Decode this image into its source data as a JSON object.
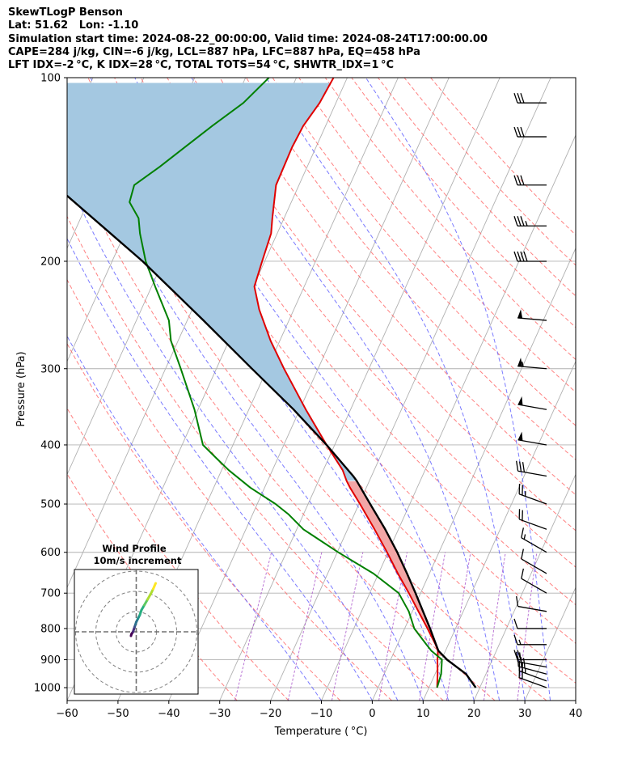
{
  "header": {
    "line1": "SkewTLogP Benson",
    "line2": "Lat: 51.62   Lon: -1.10",
    "line3": "Simulation start time: 2024-08-22_00:00:00, Valid time: 2024-08-24T17:00:00.00",
    "line4": "CAPE=284 j/kg, CIN=-6 j/kg, LCL=887 hPa, LFC=887 hPa, EQ=458 hPa",
    "line5": "LFT IDX=-2 °C, K IDX=28 °C, TOTAL TOTS=54 °C, SHWTR_IDX=1 °C"
  },
  "chart_data": {
    "type": "line",
    "xlabel": "Temperature ( °C)",
    "ylabel": "Pressure (hPa)",
    "xlim": [
      -60,
      40
    ],
    "ylim": [
      1050,
      100
    ],
    "y_scale": "log",
    "x_ticks": [
      "−60",
      "−50",
      "−40",
      "−30",
      "−20",
      "−10",
      "0",
      "10",
      "20",
      "30",
      "40"
    ],
    "y_ticks": [
      "100",
      "200",
      "300",
      "400",
      "500",
      "600",
      "700",
      "800",
      "900",
      "1000"
    ],
    "grid": true,
    "series": [
      {
        "role": "temperature",
        "color": "#e00000",
        "pressure": [
          1000,
          950,
          900,
          870,
          850,
          800,
          750,
          700,
          650,
          600,
          550,
          500,
          470,
          458,
          440,
          400,
          350,
          300,
          270,
          240,
          220,
          200,
          180,
          170,
          150,
          130,
          120,
          110,
          100
        ],
        "temp": [
          11.6,
          10.5,
          9.2,
          8.5,
          7.5,
          4.5,
          1.2,
          -2.3,
          -6.2,
          -10.2,
          -14.7,
          -19.8,
          -23.2,
          -24.5,
          -26.2,
          -31.6,
          -38.8,
          -46.7,
          -51.8,
          -56.8,
          -59.8,
          -60.5,
          -61.2,
          -62.3,
          -64.5,
          -64.7,
          -64.4,
          -63.2,
          -62.7
        ]
      },
      {
        "role": "dewpoint",
        "color": "#008000",
        "pressure": [
          1000,
          950,
          900,
          870,
          850,
          800,
          750,
          700,
          650,
          600,
          550,
          520,
          500,
          470,
          440,
          420,
          400,
          350,
          300,
          270,
          250,
          220,
          200,
          180,
          170,
          160,
          150,
          140,
          130,
          120,
          110,
          100
        ],
        "temp": [
          11.6,
          11.2,
          10.1,
          7.2,
          5.7,
          1.9,
          -0.7,
          -4.3,
          -11.0,
          -19.8,
          -28.7,
          -32.9,
          -36.4,
          -42.8,
          -48.6,
          -52.2,
          -55.9,
          -60.7,
          -67.0,
          -71.4,
          -73.6,
          -79.3,
          -83.4,
          -87.0,
          -88.6,
          -91.8,
          -92.4,
          -89.0,
          -85.8,
          -82.3,
          -78.2,
          -75.4
        ]
      },
      {
        "role": "parcel",
        "color": "#000000",
        "pressure": [
          1000,
          950,
          900,
          870,
          850,
          800,
          750,
          700,
          650,
          600,
          550,
          500,
          458,
          450,
          400,
          350,
          300,
          250,
          200,
          150,
          100
        ],
        "temp": [
          19.2,
          16.1,
          11.1,
          8.6,
          7.6,
          5.0,
          2.1,
          -1.0,
          -4.4,
          -8.2,
          -12.6,
          -17.8,
          -22.5,
          -23.6,
          -31.6,
          -41.2,
          -53.0,
          -66.8,
          -84.0,
          -108.0,
          -135.0
        ]
      }
    ],
    "shading": [
      {
        "name": "CAPE",
        "color": "#f2a6a6",
        "from_pressure": 887,
        "to_pressure": 458
      },
      {
        "name": "CIN_upper",
        "color": "#a4c8e1",
        "from_pressure": 458,
        "to_pressure": 100
      }
    ],
    "background_lines": {
      "isotherms_color": "#b0b0b0",
      "dry_adiabats_color": "#ff6b6b",
      "moist_adiabats_color": "#5a5aff",
      "mixing_ratio_color": "#aa55cc"
    },
    "wind_barbs": {
      "color": "#000000",
      "pressure": [
        1000,
        975,
        950,
        925,
        900,
        850,
        800,
        750,
        700,
        650,
        600,
        550,
        500,
        450,
        400,
        350,
        300,
        250,
        200,
        175,
        150,
        125,
        110
      ],
      "speed_kt": [
        20,
        25,
        25,
        25,
        20,
        15,
        10,
        10,
        10,
        10,
        15,
        20,
        25,
        30,
        50,
        50,
        55,
        50,
        40,
        35,
        30,
        30,
        30
      ],
      "direction_deg": [
        290,
        290,
        285,
        280,
        270,
        270,
        270,
        280,
        300,
        300,
        300,
        290,
        290,
        280,
        280,
        280,
        275,
        275,
        270,
        270,
        270,
        270,
        270
      ]
    }
  },
  "inset": {
    "title_line1": "Wind Profile",
    "title_line2": "10m/s increment",
    "rings_mps": [
      10,
      20,
      30
    ],
    "hodograph_u": [
      -2.6,
      -2.4,
      -1.6,
      -1.2,
      -0.8,
      -0.4,
      0.0,
      0.8,
      1.8,
      2.6,
      4.0,
      5.6,
      7.2,
      8.4,
      9.6
    ],
    "hodograph_v": [
      -2.0,
      -1.2,
      0.0,
      1.2,
      2.4,
      3.6,
      4.8,
      6.4,
      8.4,
      10.8,
      13.2,
      16.0,
      18.8,
      21.2,
      24.0
    ],
    "colormap": [
      "#440154",
      "#472d7b",
      "#3b528b",
      "#2c728e",
      "#21918c",
      "#28ae80",
      "#5ec962",
      "#addc30",
      "#fde725"
    ]
  }
}
